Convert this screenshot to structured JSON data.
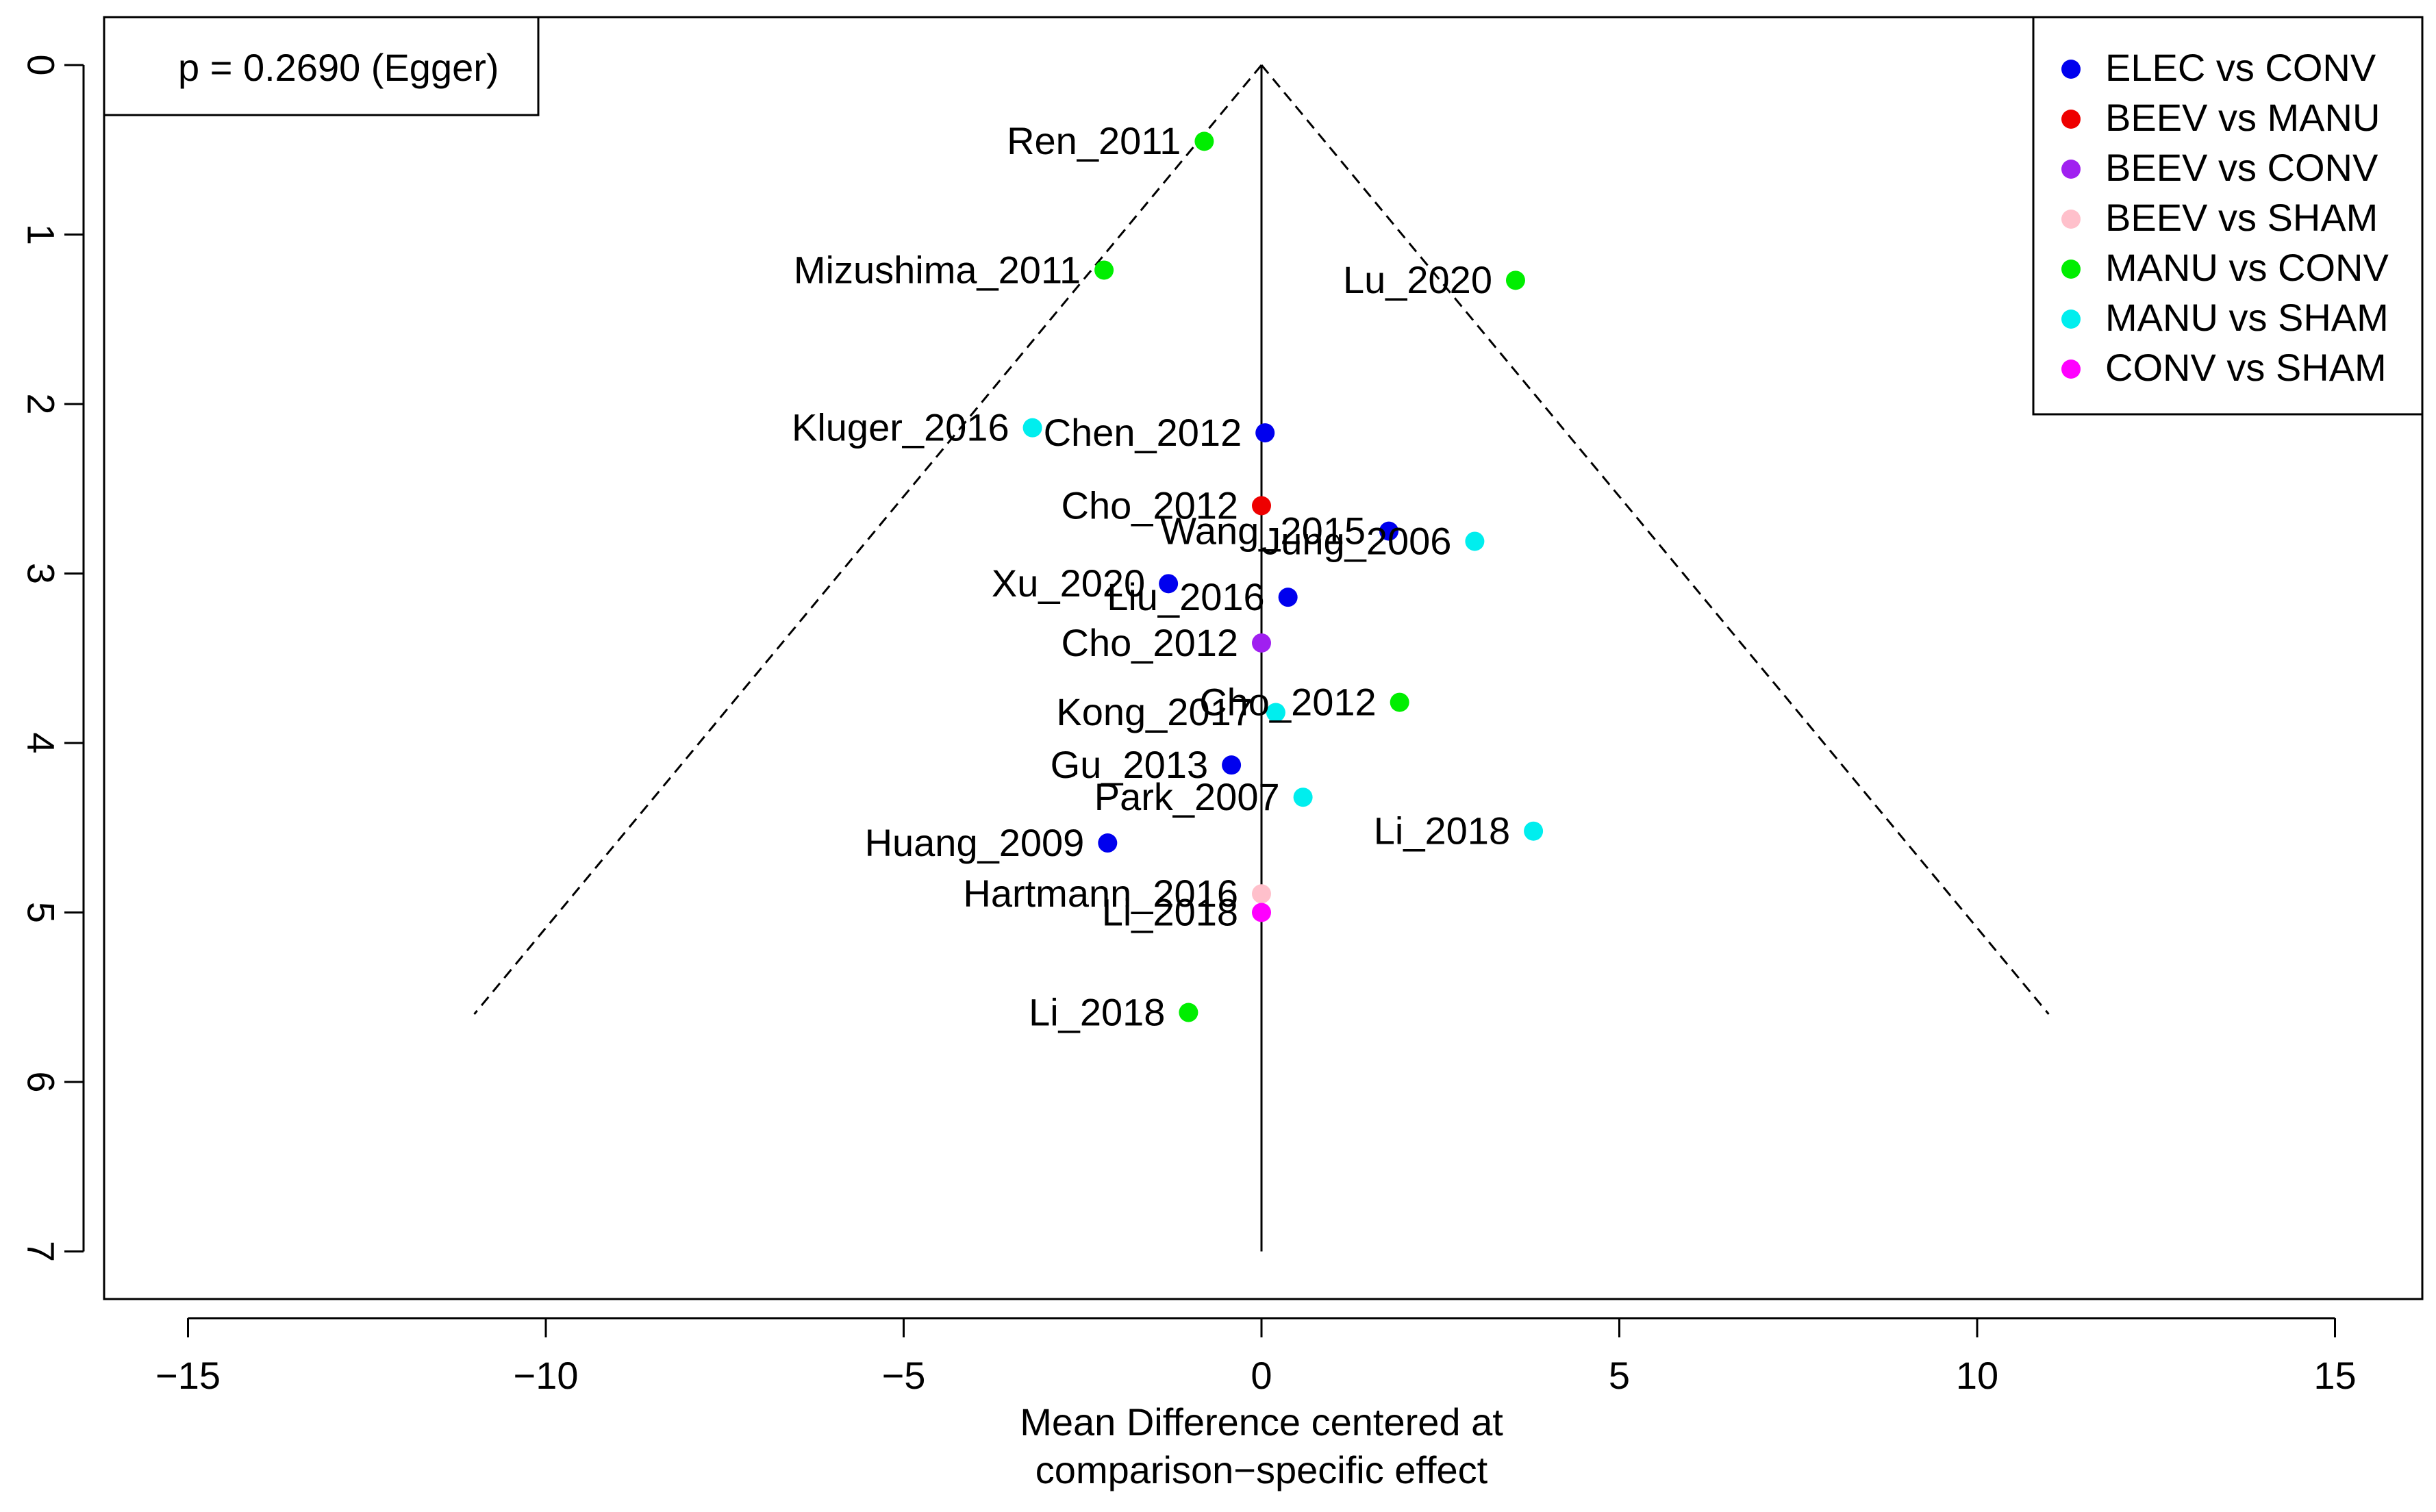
{
  "chart_data": {
    "type": "scatter",
    "subtype": "funnel",
    "title": "",
    "xlabel": [
      "Mean Difference centered at",
      "comparison−specific effect"
    ],
    "ylabel": "",
    "xlim": [
      -16.2,
      16.2
    ],
    "ylim": [
      0,
      7.3
    ],
    "y_reversed": true,
    "x_ticks": [
      -15,
      -10,
      -5,
      0,
      5,
      10,
      15
    ],
    "x_tick_labels": [
      "−15",
      "−10",
      "−5",
      "0",
      "5",
      "10",
      "15"
    ],
    "y_ticks": [
      0,
      1,
      2,
      3,
      4,
      5,
      6,
      7
    ],
    "y_tick_labels": [
      "0",
      "1",
      "2",
      "3",
      "4",
      "5",
      "6",
      "7"
    ],
    "funnel": {
      "apex": [
        0,
        0
      ],
      "left_end": [
        -11,
        5.6
      ],
      "right_end": [
        11,
        5.6
      ],
      "center_line_bottom": 7
    },
    "annotation": "p = 0.2690 (Egger)",
    "legend": {
      "position": "top-right",
      "entries": [
        {
          "label": "ELEC vs CONV",
          "color": "#0000ee"
        },
        {
          "label": "BEEV vs MANU",
          "color": "#ee0000"
        },
        {
          "label": "BEEV vs CONV",
          "color": "#a020f0"
        },
        {
          "label": "BEEV vs SHAM",
          "color": "#ffc0cb"
        },
        {
          "label": "MANU vs CONV",
          "color": "#00ee00"
        },
        {
          "label": "MANU vs SHAM",
          "color": "#00eeee"
        },
        {
          "label": "CONV vs SHAM",
          "color": "#ff00ff"
        }
      ]
    },
    "points": [
      {
        "label": "Ren_2011",
        "x": -0.8,
        "y": 0.45,
        "group": 4,
        "anchor": "left"
      },
      {
        "label": "Mizushima_2011",
        "x": -2.2,
        "y": 1.21,
        "group": 4,
        "anchor": "left"
      },
      {
        "label": "Lu_2020",
        "x": 3.55,
        "y": 1.27,
        "group": 4,
        "anchor": "left"
      },
      {
        "label": "Kluger_2016",
        "x": -3.2,
        "y": 2.14,
        "group": 5,
        "anchor": "left"
      },
      {
        "label": "Chen_2012",
        "x": 0.05,
        "y": 2.17,
        "group": 0,
        "anchor": "left"
      },
      {
        "label": "Cho_2012",
        "x": 0.0,
        "y": 2.6,
        "group": 1,
        "anchor": "left"
      },
      {
        "label": "Wang_2015",
        "x": 1.78,
        "y": 2.75,
        "group": 0,
        "anchor": "left"
      },
      {
        "label": "Jung_2006",
        "x": 2.98,
        "y": 2.81,
        "group": 5,
        "anchor": "left"
      },
      {
        "label": "Xu_2020",
        "x": -1.3,
        "y": 3.06,
        "group": 0,
        "anchor": "left"
      },
      {
        "label": "Liu_2016",
        "x": 0.37,
        "y": 3.14,
        "group": 0,
        "anchor": "left"
      },
      {
        "label": "Cho_2012",
        "x": 0.0,
        "y": 3.41,
        "group": 2,
        "anchor": "left"
      },
      {
        "label": "Cho_2012",
        "x": 1.93,
        "y": 3.76,
        "group": 4,
        "anchor": "left"
      },
      {
        "label": "Kong_2017",
        "x": 0.2,
        "y": 3.82,
        "group": 5,
        "anchor": "left"
      },
      {
        "label": "Gu_2013",
        "x": -0.42,
        "y": 4.13,
        "group": 0,
        "anchor": "left"
      },
      {
        "label": "Park_2007",
        "x": 0.58,
        "y": 4.32,
        "group": 5,
        "anchor": "left"
      },
      {
        "label": "Li_2018",
        "x": 3.8,
        "y": 4.52,
        "group": 5,
        "anchor": "left"
      },
      {
        "label": "Huang_2009",
        "x": -2.15,
        "y": 4.59,
        "group": 0,
        "anchor": "left"
      },
      {
        "label": "Hartmann_2016",
        "x": 0.0,
        "y": 4.89,
        "group": 3,
        "anchor": "left"
      },
      {
        "label": "Li_2018",
        "x": 0.0,
        "y": 5.0,
        "group": 6,
        "anchor": "left"
      },
      {
        "label": "Li_2018",
        "x": -1.02,
        "y": 5.59,
        "group": 4,
        "anchor": "left"
      }
    ]
  }
}
